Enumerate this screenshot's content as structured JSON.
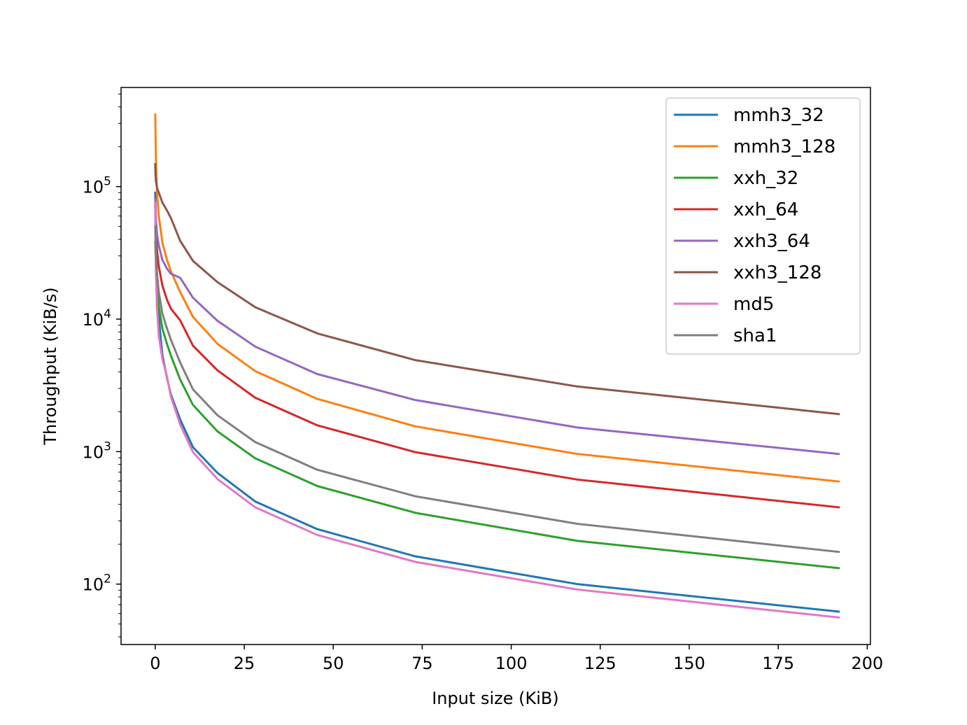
{
  "chart_data": {
    "type": "line",
    "title": "",
    "xlabel": "Input size (KiB)",
    "ylabel": "Throughput (KiB/s)",
    "xlim": [
      -9.6,
      200.9
    ],
    "ylim": [
      35,
      560000
    ],
    "yscale": "log",
    "grid": false,
    "legend_position": "top-right",
    "xticks": [
      "0",
      "25",
      "50",
      "75",
      "100",
      "125",
      "150",
      "175",
      "200"
    ],
    "yticks": [
      {
        "base": "10",
        "exp": "2",
        "value": 100
      },
      {
        "base": "10",
        "exp": "3",
        "value": 1000
      },
      {
        "base": "10",
        "exp": "4",
        "value": 10000
      },
      {
        "base": "10",
        "exp": "5",
        "value": 100000
      }
    ],
    "x": [
      0,
      0.02,
      0.05,
      0.1,
      0.2,
      0.5,
      1,
      2,
      3.3,
      4.4,
      7,
      10.6,
      17.5,
      28.1,
      45.5,
      73.1,
      118.6,
      192
    ],
    "series": [
      {
        "name": "mmh3_32",
        "color": "#1f77b4",
        "values": [
          90000,
          86000,
          78000,
          62000,
          40000,
          20000,
          10200,
          5400,
          3600,
          2700,
          1750,
          1080,
          690,
          420,
          260,
          162,
          100,
          62
        ]
      },
      {
        "name": "mmh3_128",
        "color": "#ff7f0e",
        "values": [
          350000,
          340000,
          300000,
          240000,
          160000,
          90000,
          60000,
          38000,
          28000,
          23000,
          16000,
          10400,
          6500,
          4050,
          2500,
          1550,
          960,
          595
        ]
      },
      {
        "name": "xxh_32",
        "color": "#2ca02c",
        "values": [
          38000,
          37000,
          35000,
          31000,
          25000,
          17000,
          12500,
          8500,
          6500,
          5300,
          3500,
          2250,
          1420,
          890,
          550,
          345,
          212,
          132
        ]
      },
      {
        "name": "xxh_64",
        "color": "#d62728",
        "values": [
          72000,
          70000,
          66000,
          58000,
          47000,
          33000,
          25000,
          18000,
          14000,
          12000,
          9800,
          6300,
          4100,
          2550,
          1580,
          990,
          615,
          380
        ]
      },
      {
        "name": "xxh3_64",
        "color": "#9467bd",
        "values": [
          80000,
          78000,
          74000,
          66000,
          56000,
          44000,
          36000,
          28000,
          24000,
          22000,
          20500,
          14500,
          9700,
          6200,
          3850,
          2450,
          1520,
          960
        ]
      },
      {
        "name": "xxh3_128",
        "color": "#8c564b",
        "values": [
          148000,
          140000,
          130000,
          120000,
          110000,
          98000,
          90000,
          76000,
          66000,
          58000,
          39000,
          27500,
          19000,
          12300,
          7800,
          4900,
          3100,
          1920
        ]
      },
      {
        "name": "md5",
        "color": "#e377c2",
        "values": [
          75000,
          65000,
          50000,
          35000,
          22000,
          12000,
          7500,
          5000,
          3700,
          2600,
          1600,
          990,
          620,
          380,
          235,
          147,
          91,
          56
        ]
      },
      {
        "name": "sha1",
        "color": "#7f7f7f",
        "values": [
          50000,
          48000,
          45000,
          40000,
          32000,
          22000,
          16000,
          11000,
          8500,
          7000,
          4700,
          2950,
          1880,
          1180,
          730,
          460,
          285,
          175
        ]
      }
    ]
  }
}
